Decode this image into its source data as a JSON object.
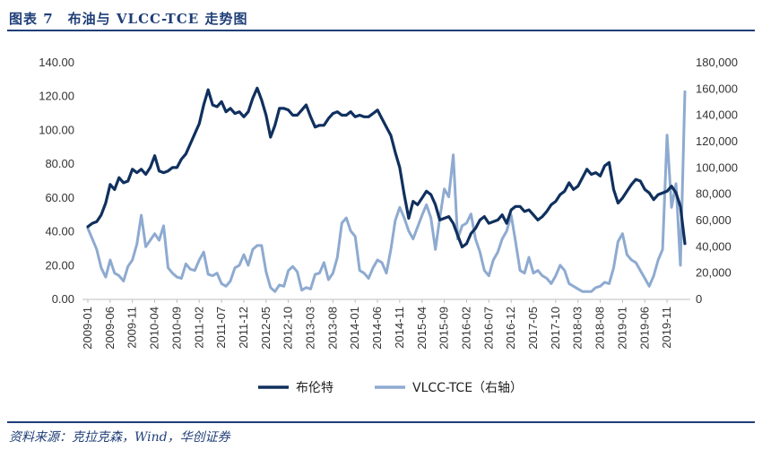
{
  "title": "图表 7　布油与 VLCC-TCE 走势图",
  "source": "资料来源：克拉克森，Wind，华创证券",
  "chart_data": {
    "type": "line",
    "x": [
      "2009-01",
      "2009-02",
      "2009-03",
      "2009-04",
      "2009-05",
      "2009-06",
      "2009-07",
      "2009-08",
      "2009-09",
      "2009-10",
      "2009-11",
      "2009-12",
      "2010-01",
      "2010-02",
      "2010-03",
      "2010-04",
      "2010-05",
      "2010-06",
      "2010-07",
      "2010-08",
      "2010-09",
      "2010-10",
      "2010-11",
      "2010-12",
      "2011-01",
      "2011-02",
      "2011-03",
      "2011-04",
      "2011-05",
      "2011-06",
      "2011-07",
      "2011-08",
      "2011-09",
      "2011-10",
      "2011-11",
      "2011-12",
      "2012-01",
      "2012-02",
      "2012-03",
      "2012-04",
      "2012-05",
      "2012-06",
      "2012-07",
      "2012-08",
      "2012-09",
      "2012-10",
      "2012-11",
      "2012-12",
      "2013-01",
      "2013-02",
      "2013-03",
      "2013-04",
      "2013-05",
      "2013-06",
      "2013-07",
      "2013-08",
      "2013-09",
      "2013-10",
      "2013-11",
      "2013-12",
      "2014-01",
      "2014-02",
      "2014-03",
      "2014-04",
      "2014-05",
      "2014-06",
      "2014-07",
      "2014-08",
      "2014-09",
      "2014-10",
      "2014-11",
      "2014-12",
      "2015-01",
      "2015-02",
      "2015-03",
      "2015-04",
      "2015-05",
      "2015-06",
      "2015-07",
      "2015-08",
      "2015-09",
      "2015-10",
      "2015-11",
      "2015-12",
      "2016-01",
      "2016-02",
      "2016-03",
      "2016-04",
      "2016-05",
      "2016-06",
      "2016-07",
      "2016-08",
      "2016-09",
      "2016-10",
      "2016-11",
      "2016-12",
      "2017-01",
      "2017-02",
      "2017-03",
      "2017-04",
      "2017-05",
      "2017-06",
      "2017-07",
      "2017-08",
      "2017-09",
      "2017-10",
      "2017-11",
      "2017-12",
      "2018-01",
      "2018-02",
      "2018-03",
      "2018-04",
      "2018-05",
      "2018-06",
      "2018-07",
      "2018-08",
      "2018-09",
      "2018-10",
      "2018-11",
      "2018-12",
      "2019-01",
      "2019-02",
      "2019-03",
      "2019-04",
      "2019-05",
      "2019-06",
      "2019-07",
      "2019-08",
      "2019-09",
      "2019-10",
      "2019-11",
      "2019-12",
      "2020-01",
      "2020-02",
      "2020-03"
    ],
    "x_tick_labels": [
      "2009-01",
      "2009-06",
      "2009-11",
      "2010-04",
      "2010-09",
      "2011-02",
      "2011-07",
      "2011-12",
      "2012-05",
      "2012-10",
      "2013-03",
      "2013-08",
      "2014-01",
      "2014-06",
      "2014-11",
      "2015-04",
      "2015-09",
      "2016-02",
      "2016-07",
      "2016-12",
      "2017-05",
      "2017-10",
      "2018-03",
      "2018-08",
      "2019-01",
      "2019-06",
      "2019-11"
    ],
    "y_left": {
      "min": 0,
      "max": 140,
      "ticks": [
        "0.00",
        "20.00",
        "40.00",
        "60.00",
        "80.00",
        "100.00",
        "120.00",
        "140.00"
      ]
    },
    "y_right": {
      "min": 0,
      "max": 180000,
      "ticks": [
        "0",
        "20,000",
        "40,000",
        "60,000",
        "80,000",
        "100,000",
        "120,000",
        "140,000",
        "160,000",
        "180,000"
      ]
    },
    "series": [
      {
        "name": "布伦特",
        "axis": "left",
        "color": "#10305e",
        "values": [
          43,
          45,
          46,
          50,
          57,
          68,
          65,
          72,
          69,
          70,
          77,
          75,
          77,
          74,
          78,
          85,
          76,
          75,
          76,
          78,
          78,
          83,
          86,
          92,
          98,
          104,
          115,
          124,
          115,
          114,
          117,
          111,
          113,
          110,
          111,
          108,
          111,
          119,
          125,
          118,
          109,
          96,
          103,
          113,
          113,
          112,
          109,
          109,
          112,
          115,
          108,
          102,
          103,
          103,
          107,
          110,
          111,
          109,
          109,
          111,
          108,
          109,
          108,
          108,
          110,
          112,
          107,
          102,
          97,
          87,
          78,
          62,
          48,
          58,
          56,
          60,
          64,
          62,
          56,
          47,
          48,
          49,
          45,
          38,
          31,
          33,
          39,
          42,
          47,
          49,
          45,
          46,
          47,
          50,
          45,
          53,
          55,
          55,
          52,
          53,
          50,
          47,
          49,
          52,
          56,
          58,
          62,
          64,
          69,
          65,
          67,
          72,
          77,
          74,
          75,
          73,
          79,
          81,
          65,
          57,
          60,
          64,
          68,
          71,
          70,
          65,
          63,
          59,
          62,
          63,
          64,
          67,
          63,
          55,
          33
        ]
      },
      {
        "name": "VLCC-TCE（右轴）",
        "axis": "right",
        "color": "#8eaad0",
        "values": [
          54000,
          46000,
          38000,
          24000,
          17000,
          30000,
          20000,
          18000,
          14000,
          25000,
          30000,
          42000,
          64000,
          40000,
          45000,
          50000,
          45000,
          56000,
          24000,
          20000,
          17000,
          16000,
          27000,
          23000,
          22000,
          30000,
          36000,
          19000,
          18000,
          20000,
          12000,
          10000,
          14000,
          24000,
          26000,
          34000,
          26000,
          38000,
          41000,
          41000,
          21000,
          9000,
          6000,
          11000,
          10000,
          22000,
          25000,
          21000,
          7000,
          9000,
          8000,
          19000,
          20000,
          28000,
          15000,
          20000,
          32000,
          58000,
          62000,
          52000,
          48000,
          22000,
          20000,
          16000,
          24000,
          30000,
          28000,
          20000,
          38000,
          60000,
          70000,
          62000,
          52000,
          46000,
          55000,
          64000,
          72000,
          62000,
          38000,
          62000,
          84000,
          78000,
          110000,
          46000,
          56000,
          58000,
          65000,
          46000,
          36000,
          22000,
          18000,
          30000,
          36000,
          46000,
          52000,
          64000,
          44000,
          22000,
          20000,
          32000,
          20000,
          22000,
          18000,
          16000,
          12000,
          18000,
          26000,
          22000,
          12000,
          10000,
          8000,
          6000,
          6000,
          6000,
          9000,
          10000,
          13000,
          12000,
          24000,
          44000,
          50000,
          34000,
          30000,
          28000,
          22000,
          16000,
          10000,
          18000,
          30000,
          38000,
          125000,
          70000,
          88000,
          26000,
          158000
        ]
      }
    ],
    "legend_position": "bottom",
    "grid": false
  }
}
